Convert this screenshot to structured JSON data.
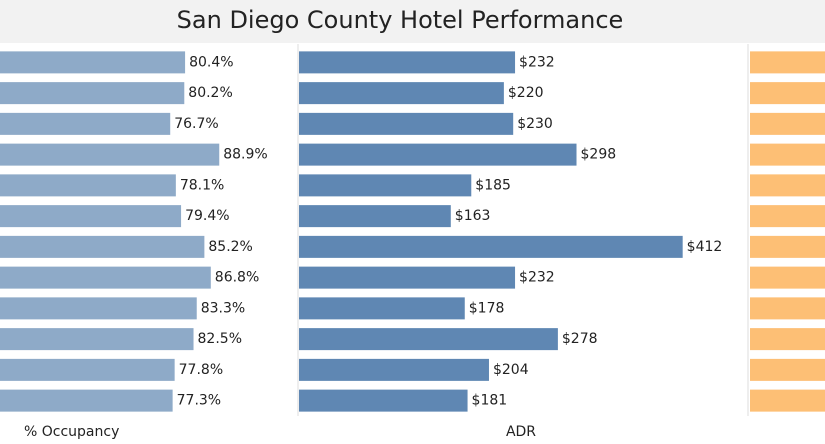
{
  "chart_data": [
    {
      "type": "bar",
      "orientation": "horizontal",
      "title": "San Diego County Hotel Performance",
      "x_label": "% Occupancy",
      "categories": [
        null,
        null,
        null,
        null,
        null,
        null,
        null,
        null,
        null,
        null,
        null,
        null
      ],
      "values": [
        80.4,
        80.2,
        76.7,
        88.9,
        78.1,
        79.4,
        85.2,
        86.8,
        83.3,
        82.5,
        77.8,
        77.3
      ],
      "value_labels": [
        "80.4%",
        "80.2%",
        "76.7%",
        "88.9%",
        "78.1%",
        "79.4%",
        "85.2%",
        "86.8%",
        "83.3%",
        "82.5%",
        "77.8%",
        "77.3%"
      ],
      "color": "#8eaac8",
      "xlim": [
        0,
        108
      ]
    },
    {
      "type": "bar",
      "orientation": "horizontal",
      "x_label": "ADR",
      "categories": [
        null,
        null,
        null,
        null,
        null,
        null,
        null,
        null,
        null,
        null,
        null,
        null
      ],
      "values": [
        232,
        220,
        230,
        298,
        185,
        163,
        412,
        232,
        178,
        278,
        204,
        181
      ],
      "value_labels": [
        "$232",
        "$220",
        "$230",
        "$298",
        "$185",
        "$163",
        "$412",
        "$232",
        "$178",
        "$278",
        "$204",
        "$181"
      ],
      "color": "#5f87b3",
      "xlim": [
        0,
        480
      ]
    }
  ]
}
